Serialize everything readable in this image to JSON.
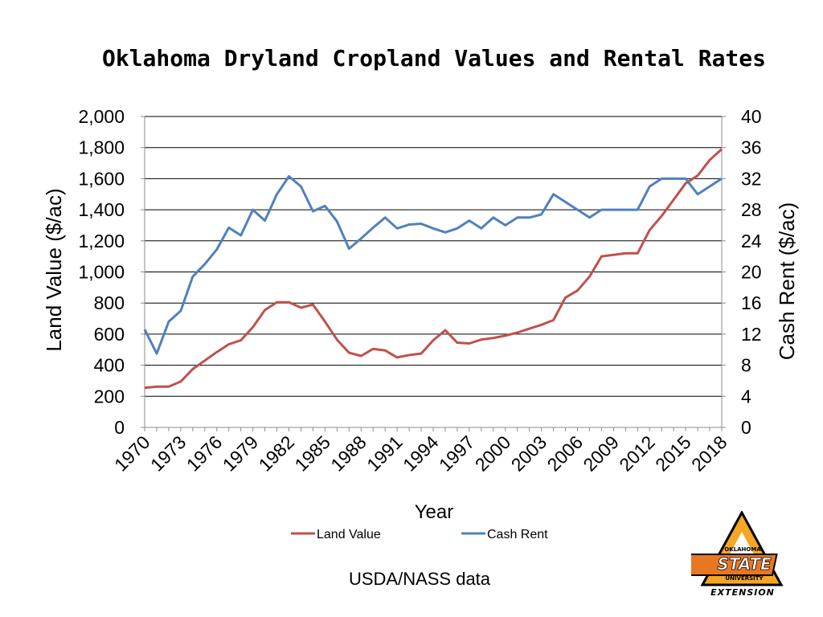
{
  "chart_data": {
    "type": "line",
    "title": "Oklahoma Dryland Cropland Values and Rental Rates",
    "xlabel": "Year",
    "ylabel_left": "Land Value ($/ac)",
    "ylabel_right": "Cash Rent ($/ac)",
    "ylim_left": [
      0,
      2000
    ],
    "ylim_right": [
      0,
      40
    ],
    "yticks_left": [
      "0",
      "200",
      "400",
      "600",
      "800",
      "1,000",
      "1,200",
      "1,400",
      "1,600",
      "1,800",
      "2,000"
    ],
    "yticks_right": [
      "0",
      "4",
      "8",
      "12",
      "16",
      "20",
      "24",
      "28",
      "32",
      "36",
      "40"
    ],
    "xtick_labels": [
      "1970",
      "1973",
      "1976",
      "1979",
      "1982",
      "1985",
      "1988",
      "1991",
      "1994",
      "1997",
      "2000",
      "2003",
      "2006",
      "2009",
      "2012",
      "2015",
      "2018"
    ],
    "grid": "horizontal",
    "legend_position": "bottom",
    "x": [
      1970,
      1971,
      1972,
      1973,
      1974,
      1975,
      1976,
      1977,
      1978,
      1979,
      1980,
      1981,
      1982,
      1983,
      1984,
      1985,
      1986,
      1987,
      1988,
      1989,
      1990,
      1991,
      1992,
      1993,
      1994,
      1995,
      1996,
      1997,
      1998,
      1999,
      2000,
      2001,
      2002,
      2003,
      2004,
      2005,
      2006,
      2007,
      2008,
      2009,
      2010,
      2011,
      2012,
      2013,
      2014,
      2015,
      2016,
      2017,
      2018
    ],
    "series": [
      {
        "name": "Land Value",
        "axis": "left",
        "color": "#c0504d",
        "values": [
          255,
          262,
          262,
          295,
          375,
          430,
          485,
          535,
          560,
          645,
          755,
          805,
          805,
          770,
          790,
          680,
          565,
          480,
          460,
          505,
          495,
          450,
          465,
          475,
          560,
          625,
          545,
          540,
          565,
          575,
          590,
          610,
          635,
          660,
          690,
          835,
          880,
          970,
          1100,
          1110,
          1120,
          1120,
          1270,
          1360,
          1465,
          1570,
          1620,
          1720,
          1790
        ]
      },
      {
        "name": "Cash Rent",
        "axis": "right",
        "color": "#4f81bd",
        "values": [
          12.6,
          9.5,
          13.6,
          15.0,
          19.4,
          21.0,
          22.9,
          25.7,
          24.7,
          28.0,
          26.6,
          30.0,
          32.3,
          31.0,
          27.8,
          28.5,
          26.5,
          23.0,
          24.3,
          25.7,
          27.0,
          25.6,
          26.1,
          26.2,
          25.6,
          25.1,
          25.6,
          26.6,
          25.6,
          27.0,
          26.0,
          27.0,
          27.0,
          27.4,
          30.0,
          29.0,
          28.0,
          27.0,
          28.0,
          28.0,
          28.0,
          28.0,
          31.0,
          32.0,
          32.0,
          32.0,
          30.0,
          31.0,
          32.0
        ]
      }
    ]
  },
  "source_text": "USDA/NASS data",
  "logo": {
    "line1": "OKLAHOMA",
    "line2": "STATE",
    "line3": "UNIVERSITY",
    "line4": "EXTENSION"
  }
}
